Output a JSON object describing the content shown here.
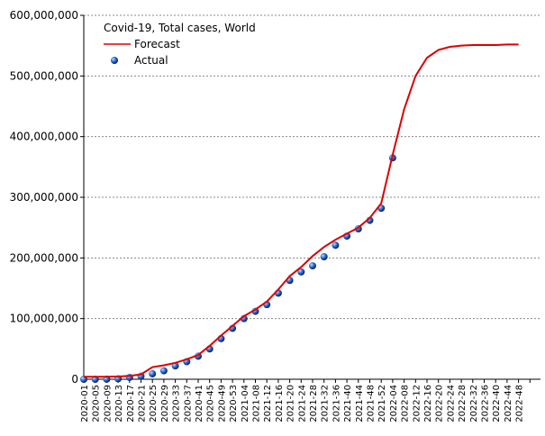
{
  "chart_data": {
    "type": "line",
    "title": "Covid-19, Total cases, World",
    "categories": [
      "2020-01",
      "2020-05",
      "2020-09",
      "2020-13",
      "2020-17",
      "2020-21",
      "2020-25",
      "2020-29",
      "2020-33",
      "2020-37",
      "2020-41",
      "2020-45",
      "2020-49",
      "2020-53",
      "2021-04",
      "2021-08",
      "2021-12",
      "2021-16",
      "2021-20",
      "2021-24",
      "2021-28",
      "2021-32",
      "2021-36",
      "2021-40",
      "2021-44",
      "2021-48",
      "2021-52",
      "2022-04",
      "2022-08",
      "2022-12",
      "2022-16",
      "2022-20",
      "2022-24",
      "2022-28",
      "2022-32",
      "2022-36",
      "2022-40",
      "2022-44",
      "2022-48",
      null
    ],
    "series": [
      {
        "name": "Forecast",
        "color": "#dd0000",
        "marker": "line",
        "values": [
          4000000,
          4000000,
          4000000,
          4500000,
          5500000,
          8000000,
          20000000,
          23000000,
          27000000,
          33000000,
          40000000,
          55000000,
          72000000,
          88000000,
          104000000,
          115000000,
          128000000,
          148000000,
          170000000,
          185000000,
          203000000,
          218000000,
          230000000,
          240000000,
          250000000,
          266000000,
          290000000,
          370000000,
          445000000,
          500000000,
          530000000,
          543000000,
          548000000,
          550000000,
          551000000,
          551000000,
          551000000,
          552000000,
          552000000,
          null
        ]
      },
      {
        "name": "Actual",
        "color": "#1f5fc8",
        "marker": "dot",
        "values": [
          0,
          20000,
          100000,
          800000,
          3000000,
          5000000,
          9000000,
          14000000,
          22000000,
          29000000,
          38000000,
          50000000,
          67000000,
          84000000,
          100000000,
          112000000,
          123000000,
          142000000,
          163000000,
          177000000,
          187000000,
          202000000,
          221000000,
          236000000,
          248000000,
          262000000,
          282000000,
          365000000,
          null,
          null,
          null,
          null,
          null,
          null,
          null,
          null,
          null,
          null,
          null,
          null
        ]
      }
    ],
    "ylim": [
      0,
      600000000
    ],
    "yticks": [
      0,
      {
        "value": 100000000,
        "label": "100,000,000"
      },
      {
        "value": 200000000,
        "label": "200,000,000"
      },
      {
        "value": 300000000,
        "label": "300,000,000"
      },
      {
        "value": 400000000,
        "label": "400,000,000"
      },
      {
        "value": 500000000,
        "label": "500,000,000"
      },
      {
        "value": 600000000,
        "label": "600,000,000"
      }
    ],
    "grid": true,
    "legend": "top-left"
  }
}
